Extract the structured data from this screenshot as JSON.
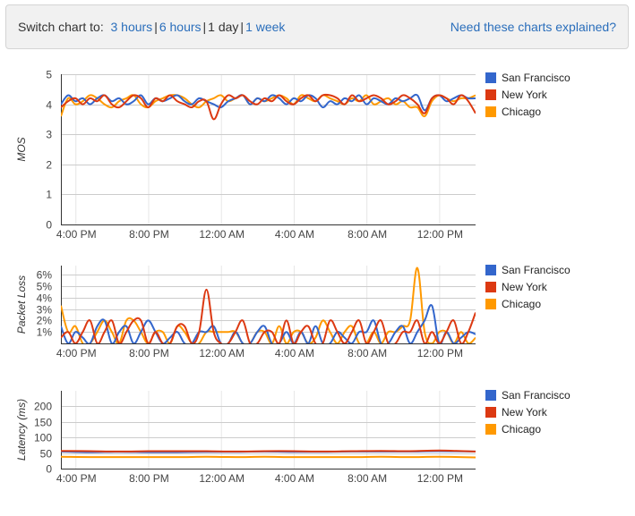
{
  "toolbar": {
    "switch_label": "Switch chart to:",
    "ranges": [
      {
        "label": "3 hours",
        "active": false
      },
      {
        "label": "6 hours",
        "active": false
      },
      {
        "label": "1 day",
        "active": true
      },
      {
        "label": "1 week",
        "active": false
      }
    ],
    "help_link": "Need these charts explained?"
  },
  "colors": {
    "San Francisco": "#3366cc",
    "New York": "#dc3912",
    "Chicago": "#ff9900"
  },
  "chart_data": [
    {
      "type": "line",
      "ylabel": "MOS",
      "ylim": [
        0,
        5
      ],
      "yticks": [
        {
          "v": 0,
          "label": "0"
        },
        {
          "v": 1,
          "label": "1"
        },
        {
          "v": 2,
          "label": "2"
        },
        {
          "v": 3,
          "label": "3"
        },
        {
          "v": 4,
          "label": "4"
        },
        {
          "v": 5,
          "label": "5"
        }
      ],
      "xlim": [
        0,
        57
      ],
      "xticks": [
        {
          "v": 2,
          "label": "4:00 PM"
        },
        {
          "v": 12,
          "label": "8:00 PM"
        },
        {
          "v": 22,
          "label": "12:00 AM"
        },
        {
          "v": 32,
          "label": "4:00 AM"
        },
        {
          "v": 42,
          "label": "8:00 AM"
        },
        {
          "v": 52,
          "label": "12:00 PM"
        }
      ],
      "legend_position": "right",
      "grid": true,
      "series": [
        {
          "name": "San Francisco",
          "x": [
            0,
            1,
            2,
            3,
            4,
            5,
            6,
            7,
            8,
            9,
            10,
            11,
            12,
            13,
            14,
            15,
            16,
            17,
            18,
            19,
            20,
            21,
            22,
            23,
            24,
            25,
            26,
            27,
            28,
            29,
            30,
            31,
            32,
            33,
            34,
            35,
            36,
            37,
            38,
            39,
            40,
            41,
            42,
            43,
            44,
            45,
            46,
            47,
            48,
            49,
            50,
            51,
            52,
            53,
            54,
            55,
            56,
            57
          ],
          "y": [
            4.0,
            4.3,
            4.1,
            4.2,
            4.0,
            4.2,
            4.3,
            4.1,
            4.2,
            4.0,
            4.1,
            4.3,
            4.0,
            4.2,
            4.1,
            4.2,
            4.3,
            4.1,
            4.0,
            4.2,
            4.1,
            4.0,
            3.9,
            4.1,
            4.2,
            4.3,
            4.0,
            4.2,
            4.1,
            4.3,
            4.2,
            4.0,
            4.2,
            4.1,
            4.3,
            4.2,
            3.9,
            4.1,
            4.0,
            4.2,
            4.1,
            4.3,
            4.0,
            4.2,
            4.1,
            4.0,
            4.2,
            4.1,
            4.2,
            4.3,
            3.8,
            4.2,
            4.3,
            4.1,
            4.2,
            4.3,
            4.2,
            4.2
          ]
        },
        {
          "name": "New York",
          "x": [
            0,
            1,
            2,
            3,
            4,
            5,
            6,
            7,
            8,
            9,
            10,
            11,
            12,
            13,
            14,
            15,
            16,
            17,
            18,
            19,
            20,
            21,
            22,
            23,
            24,
            25,
            26,
            27,
            28,
            29,
            30,
            31,
            32,
            33,
            34,
            35,
            36,
            37,
            38,
            39,
            40,
            41,
            42,
            43,
            44,
            45,
            46,
            47,
            48,
            49,
            50,
            51,
            52,
            53,
            54,
            55,
            56,
            57
          ],
          "y": [
            3.9,
            4.1,
            4.2,
            4.0,
            4.2,
            4.1,
            4.3,
            4.0,
            3.9,
            4.1,
            4.3,
            4.2,
            3.9,
            4.2,
            4.1,
            4.3,
            4.1,
            4.0,
            3.9,
            4.1,
            4.1,
            3.5,
            4.0,
            4.3,
            4.2,
            4.3,
            4.1,
            4.0,
            4.2,
            4.1,
            4.3,
            4.1,
            4.0,
            4.2,
            4.3,
            4.1,
            4.3,
            4.3,
            4.2,
            4.0,
            4.3,
            4.1,
            4.2,
            4.3,
            4.2,
            4.0,
            4.1,
            4.3,
            4.2,
            4.0,
            3.7,
            4.2,
            4.3,
            4.2,
            4.0,
            4.3,
            4.1,
            3.7
          ]
        },
        {
          "name": "Chicago",
          "x": [
            0,
            1,
            2,
            3,
            4,
            5,
            6,
            7,
            8,
            9,
            10,
            11,
            12,
            13,
            14,
            15,
            16,
            17,
            18,
            19,
            20,
            21,
            22,
            23,
            24,
            25,
            26,
            27,
            28,
            29,
            30,
            31,
            32,
            33,
            34,
            35,
            36,
            37,
            38,
            39,
            40,
            41,
            42,
            43,
            44,
            45,
            46,
            47,
            48,
            49,
            50,
            51,
            52,
            53,
            54,
            55,
            56,
            57
          ],
          "y": [
            3.6,
            4.2,
            4.0,
            4.1,
            4.3,
            4.2,
            4.0,
            3.9,
            4.1,
            4.2,
            4.3,
            4.0,
            3.9,
            4.1,
            4.2,
            4.3,
            4.3,
            4.2,
            4.0,
            3.9,
            4.1,
            4.2,
            4.3,
            4.1,
            4.2,
            4.3,
            4.0,
            4.2,
            4.1,
            4.2,
            4.3,
            4.2,
            4.0,
            4.3,
            4.2,
            4.1,
            4.3,
            4.2,
            4.1,
            4.0,
            4.2,
            4.1,
            4.3,
            4.0,
            4.1,
            4.2,
            4.0,
            4.1,
            3.9,
            3.9,
            3.6,
            4.1,
            4.3,
            4.2,
            4.1,
            4.2,
            4.2,
            4.3
          ]
        }
      ]
    },
    {
      "type": "line",
      "ylabel": "Packet Loss",
      "ylim": [
        0,
        6.8
      ],
      "yticks": [
        {
          "v": 1,
          "label": "1%"
        },
        {
          "v": 2,
          "label": "2%"
        },
        {
          "v": 3,
          "label": "3%"
        },
        {
          "v": 4,
          "label": "4%"
        },
        {
          "v": 5,
          "label": "5%"
        },
        {
          "v": 6,
          "label": "6%"
        }
      ],
      "xlim": [
        0,
        57
      ],
      "xticks": [
        {
          "v": 2,
          "label": "4:00 PM"
        },
        {
          "v": 12,
          "label": "8:00 PM"
        },
        {
          "v": 22,
          "label": "12:00 AM"
        },
        {
          "v": 32,
          "label": "4:00 AM"
        },
        {
          "v": 42,
          "label": "8:00 AM"
        },
        {
          "v": 52,
          "label": "12:00 PM"
        }
      ],
      "legend_position": "right",
      "grid": true,
      "series": [
        {
          "name": "San Francisco",
          "x": [
            0,
            1,
            2,
            3,
            4,
            5,
            6,
            7,
            8,
            9,
            10,
            11,
            12,
            13,
            14,
            15,
            16,
            17,
            18,
            19,
            20,
            21,
            22,
            23,
            24,
            25,
            26,
            27,
            28,
            29,
            30,
            31,
            32,
            33,
            34,
            35,
            36,
            37,
            38,
            39,
            40,
            41,
            42,
            43,
            44,
            45,
            46,
            47,
            48,
            49,
            50,
            51,
            52,
            53,
            54,
            55,
            56,
            57
          ],
          "y": [
            1.5,
            0,
            1,
            0.5,
            0,
            1.5,
            2,
            0,
            1,
            1.5,
            0,
            1,
            2,
            1,
            0,
            0.5,
            1,
            0,
            0,
            1,
            1,
            1.5,
            0,
            0,
            1,
            0,
            0,
            1,
            1.5,
            0,
            0,
            1,
            0,
            1,
            0,
            1.5,
            0,
            0,
            1,
            0.5,
            0,
            1,
            1,
            2,
            0,
            0,
            1,
            1.5,
            0,
            1,
            2,
            3.3,
            0,
            1,
            0,
            0.5,
            1,
            0.8
          ]
        },
        {
          "name": "New York",
          "x": [
            0,
            1,
            2,
            3,
            4,
            5,
            6,
            7,
            8,
            9,
            10,
            11,
            12,
            13,
            14,
            15,
            16,
            17,
            18,
            19,
            20,
            21,
            22,
            23,
            24,
            25,
            26,
            27,
            28,
            29,
            30,
            31,
            32,
            33,
            34,
            35,
            36,
            37,
            38,
            39,
            40,
            41,
            42,
            43,
            44,
            45,
            46,
            47,
            48,
            49,
            50,
            51,
            52,
            53,
            54,
            55,
            56,
            57
          ],
          "y": [
            0.5,
            1,
            0,
            1,
            2,
            0,
            1,
            2,
            0,
            1,
            2,
            2,
            0,
            1,
            0,
            0,
            1.5,
            1.5,
            0,
            1,
            4.7,
            1,
            0,
            0,
            1,
            2,
            0,
            0,
            1,
            1,
            0,
            2,
            0,
            1,
            1.5,
            0,
            0,
            2,
            1,
            0,
            1,
            2,
            0,
            1,
            2,
            0,
            0,
            1,
            1,
            2,
            0,
            1,
            0,
            1,
            2,
            0,
            1,
            2.7
          ]
        },
        {
          "name": "Chicago",
          "x": [
            0,
            1,
            2,
            3,
            4,
            5,
            6,
            7,
            8,
            9,
            10,
            11,
            12,
            13,
            14,
            15,
            16,
            17,
            18,
            19,
            20,
            21,
            22,
            23,
            24,
            25,
            26,
            27,
            28,
            29,
            30,
            31,
            32,
            33,
            34,
            35,
            36,
            37,
            38,
            39,
            40,
            41,
            42,
            43,
            44,
            45,
            46,
            47,
            48,
            49,
            50,
            51,
            52,
            53,
            54,
            55,
            56,
            57
          ],
          "y": [
            3.3,
            1,
            1.5,
            0,
            0,
            1,
            2,
            1,
            0,
            2,
            2,
            1,
            0,
            1,
            1,
            0,
            1.5,
            1,
            0,
            0,
            1,
            1,
            1,
            1,
            1,
            0,
            0,
            1,
            1,
            0,
            1.5,
            0,
            1,
            1,
            0,
            0.5,
            2,
            1,
            0,
            1,
            1.5,
            0,
            0,
            1,
            0,
            1,
            1,
            1.5,
            2,
            6.6,
            1,
            0,
            1,
            1,
            0,
            1,
            0,
            0.5
          ]
        }
      ]
    },
    {
      "type": "line",
      "ylabel": "Latency (ms)",
      "ylim": [
        0,
        250
      ],
      "yticks": [
        {
          "v": 0,
          "label": "0"
        },
        {
          "v": 50,
          "label": "50"
        },
        {
          "v": 100,
          "label": "100"
        },
        {
          "v": 150,
          "label": "150"
        },
        {
          "v": 200,
          "label": "200"
        }
      ],
      "xlim": [
        0,
        57
      ],
      "xticks": [
        {
          "v": 2,
          "label": "4:00 PM"
        },
        {
          "v": 12,
          "label": "8:00 PM"
        },
        {
          "v": 22,
          "label": "12:00 AM"
        },
        {
          "v": 32,
          "label": "4:00 AM"
        },
        {
          "v": 42,
          "label": "8:00 AM"
        },
        {
          "v": 52,
          "label": "12:00 PM"
        }
      ],
      "legend_position": "right",
      "grid": true,
      "series": [
        {
          "name": "San Francisco",
          "x": [
            0,
            4,
            8,
            12,
            16,
            20,
            24,
            28,
            32,
            36,
            40,
            44,
            48,
            52,
            57
          ],
          "y": [
            55,
            53,
            54,
            53,
            53,
            54,
            54,
            55,
            54,
            54,
            55,
            55,
            55,
            56,
            55
          ]
        },
        {
          "name": "New York",
          "x": [
            0,
            4,
            8,
            12,
            16,
            20,
            24,
            28,
            32,
            36,
            40,
            44,
            48,
            52,
            57
          ],
          "y": [
            57,
            56,
            55,
            56,
            56,
            56,
            55,
            56,
            56,
            55,
            56,
            57,
            56,
            58,
            55
          ]
        },
        {
          "name": "Chicago",
          "x": [
            0,
            4,
            8,
            12,
            16,
            20,
            24,
            28,
            32,
            36,
            40,
            44,
            48,
            52,
            57
          ],
          "y": [
            38,
            37,
            37,
            37,
            37,
            38,
            37,
            38,
            37,
            37,
            37,
            38,
            37,
            38,
            36
          ]
        }
      ]
    }
  ]
}
